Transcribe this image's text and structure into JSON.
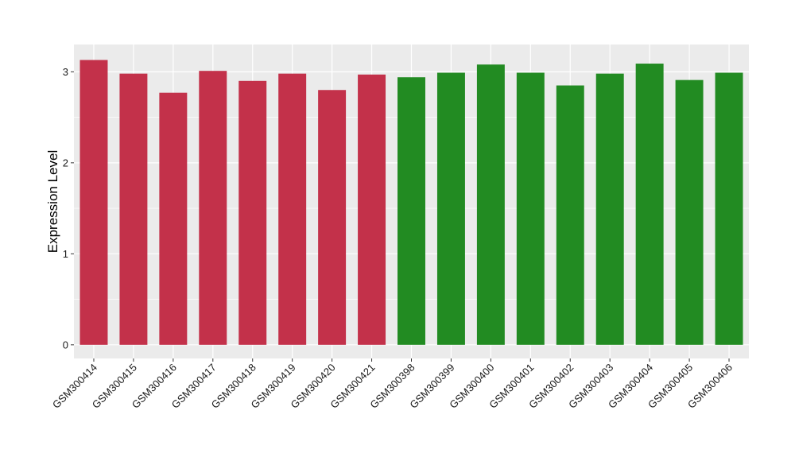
{
  "chart_data": {
    "type": "bar",
    "title": "",
    "xlabel": "",
    "ylabel": "Expression Level",
    "ylim": [
      -0.15,
      3.3
    ],
    "yticks": [
      0,
      1,
      2,
      3
    ],
    "grid": true,
    "categories": [
      "GSM300414",
      "GSM300415",
      "GSM300416",
      "GSM300417",
      "GSM300418",
      "GSM300419",
      "GSM300420",
      "GSM300421",
      "GSM300398",
      "GSM300399",
      "GSM300400",
      "GSM300401",
      "GSM300402",
      "GSM300403",
      "GSM300404",
      "GSM300405",
      "GSM300406"
    ],
    "values": [
      3.13,
      2.98,
      2.77,
      3.01,
      2.9,
      2.98,
      2.8,
      2.97,
      2.94,
      2.99,
      3.08,
      2.99,
      2.85,
      2.98,
      3.09,
      2.91,
      2.99
    ],
    "colors": [
      "#c3314a",
      "#c3314a",
      "#c3314a",
      "#c3314a",
      "#c3314a",
      "#c3314a",
      "#c3314a",
      "#c3314a",
      "#228b22",
      "#228b22",
      "#228b22",
      "#228b22",
      "#228b22",
      "#228b22",
      "#228b22",
      "#228b22",
      "#228b22"
    ],
    "panel_color": "#ebebeb",
    "grid_color": "#ffffff"
  }
}
